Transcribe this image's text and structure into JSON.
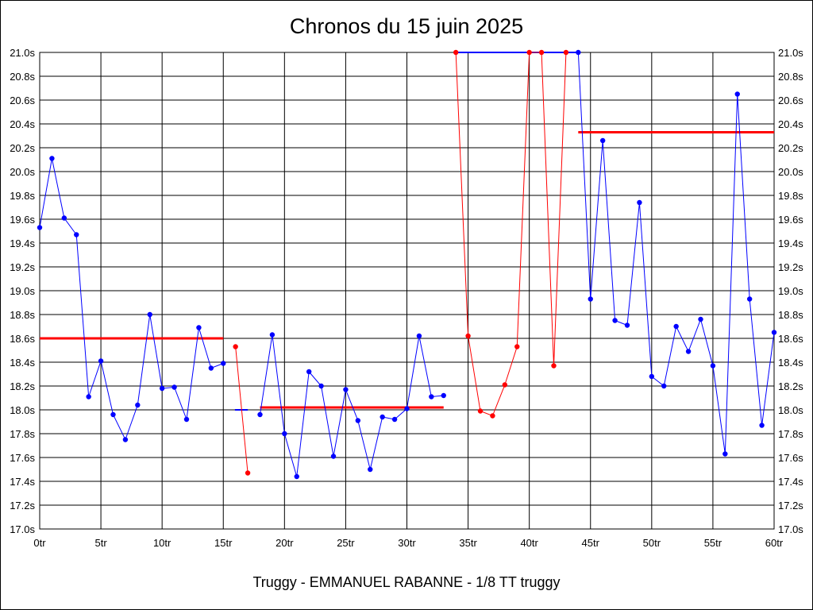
{
  "chart_data": {
    "type": "line",
    "title": "Chronos du 15 juin 2025",
    "subtitle": "Truggy - EMMANUEL RABANNE - 1/8 TT truggy",
    "xlabel": "",
    "ylabel": "",
    "xlim": [
      0,
      60
    ],
    "ylim": [
      17.0,
      21.0
    ],
    "grid": true,
    "x_ticks": [
      "0tr",
      "5tr",
      "10tr",
      "15tr",
      "20tr",
      "25tr",
      "30tr",
      "35tr",
      "40tr",
      "45tr",
      "50tr",
      "55tr",
      "60tr"
    ],
    "x_tick_values": [
      0,
      5,
      10,
      15,
      20,
      25,
      30,
      35,
      40,
      45,
      50,
      55,
      60
    ],
    "y_ticks": [
      "17.0s",
      "17.2s",
      "17.4s",
      "17.6s",
      "17.8s",
      "18.0s",
      "18.2s",
      "18.4s",
      "18.6s",
      "18.8s",
      "19.0s",
      "19.2s",
      "19.4s",
      "19.6s",
      "19.8s",
      "20.0s",
      "20.2s",
      "20.4s",
      "20.6s",
      "20.8s",
      "21.0s"
    ],
    "y_tick_values": [
      17.0,
      17.2,
      17.4,
      17.6,
      17.8,
      18.0,
      18.2,
      18.4,
      18.6,
      18.8,
      19.0,
      19.2,
      19.4,
      19.6,
      19.8,
      20.0,
      20.2,
      20.4,
      20.6,
      20.8,
      21.0
    ],
    "colors": {
      "normal": "#0000ff",
      "slow": "#ff0000",
      "average": "#ff0000"
    },
    "series": [
      {
        "color": "normal",
        "x": [
          0,
          1,
          2,
          3,
          4,
          5,
          6,
          7,
          8,
          9,
          10,
          11,
          12,
          13,
          14,
          15
        ],
        "values": [
          19.53,
          20.11,
          19.61,
          19.47,
          18.11,
          18.41,
          17.96,
          17.75,
          18.04,
          18.8,
          18.18,
          18.19,
          17.92,
          18.69,
          18.35,
          18.39
        ]
      },
      {
        "color": "slow",
        "x": [
          16,
          17
        ],
        "values": [
          18.53,
          17.47
        ]
      },
      {
        "color": "normal",
        "x": [
          18,
          19,
          20,
          21,
          22,
          23,
          24,
          25,
          26,
          27,
          28,
          29,
          30,
          31,
          32,
          33
        ],
        "values": [
          17.96,
          18.63,
          17.8,
          17.44,
          18.32,
          18.2,
          17.61,
          18.17,
          17.91,
          17.5,
          17.94,
          17.92,
          18.01,
          18.62,
          18.11,
          18.12
        ]
      },
      {
        "color": "slow",
        "x": [
          34,
          35,
          36,
          37,
          38,
          39,
          40,
          41,
          42,
          43
        ],
        "values": [
          21.0,
          18.62,
          17.99,
          17.95,
          18.21,
          18.53,
          21.0,
          21.0,
          18.37,
          21.0
        ]
      },
      {
        "color": "normal",
        "x": [
          44,
          45,
          46,
          47,
          48,
          49,
          50,
          51,
          52,
          53,
          54,
          55,
          56,
          57,
          58,
          59,
          60
        ],
        "values": [
          21.0,
          18.93,
          20.26,
          18.75,
          18.71,
          19.74,
          18.28,
          18.2,
          18.7,
          18.49,
          18.76,
          18.37,
          17.63,
          20.65,
          18.93,
          17.87,
          18.65
        ]
      }
    ],
    "capped_segments": [
      {
        "color": "normal",
        "x": [
          34,
          44
        ],
        "values": [
          21.0,
          21.0
        ]
      },
      {
        "color": "normal",
        "x": [
          15.95,
          17.0
        ],
        "values": [
          18.0,
          18.0
        ]
      }
    ],
    "averages": [
      {
        "x": [
          0,
          15
        ],
        "value": 18.6
      },
      {
        "x": [
          18,
          33
        ],
        "value": 18.02
      },
      {
        "x": [
          44,
          60
        ],
        "value": 20.33
      }
    ]
  }
}
